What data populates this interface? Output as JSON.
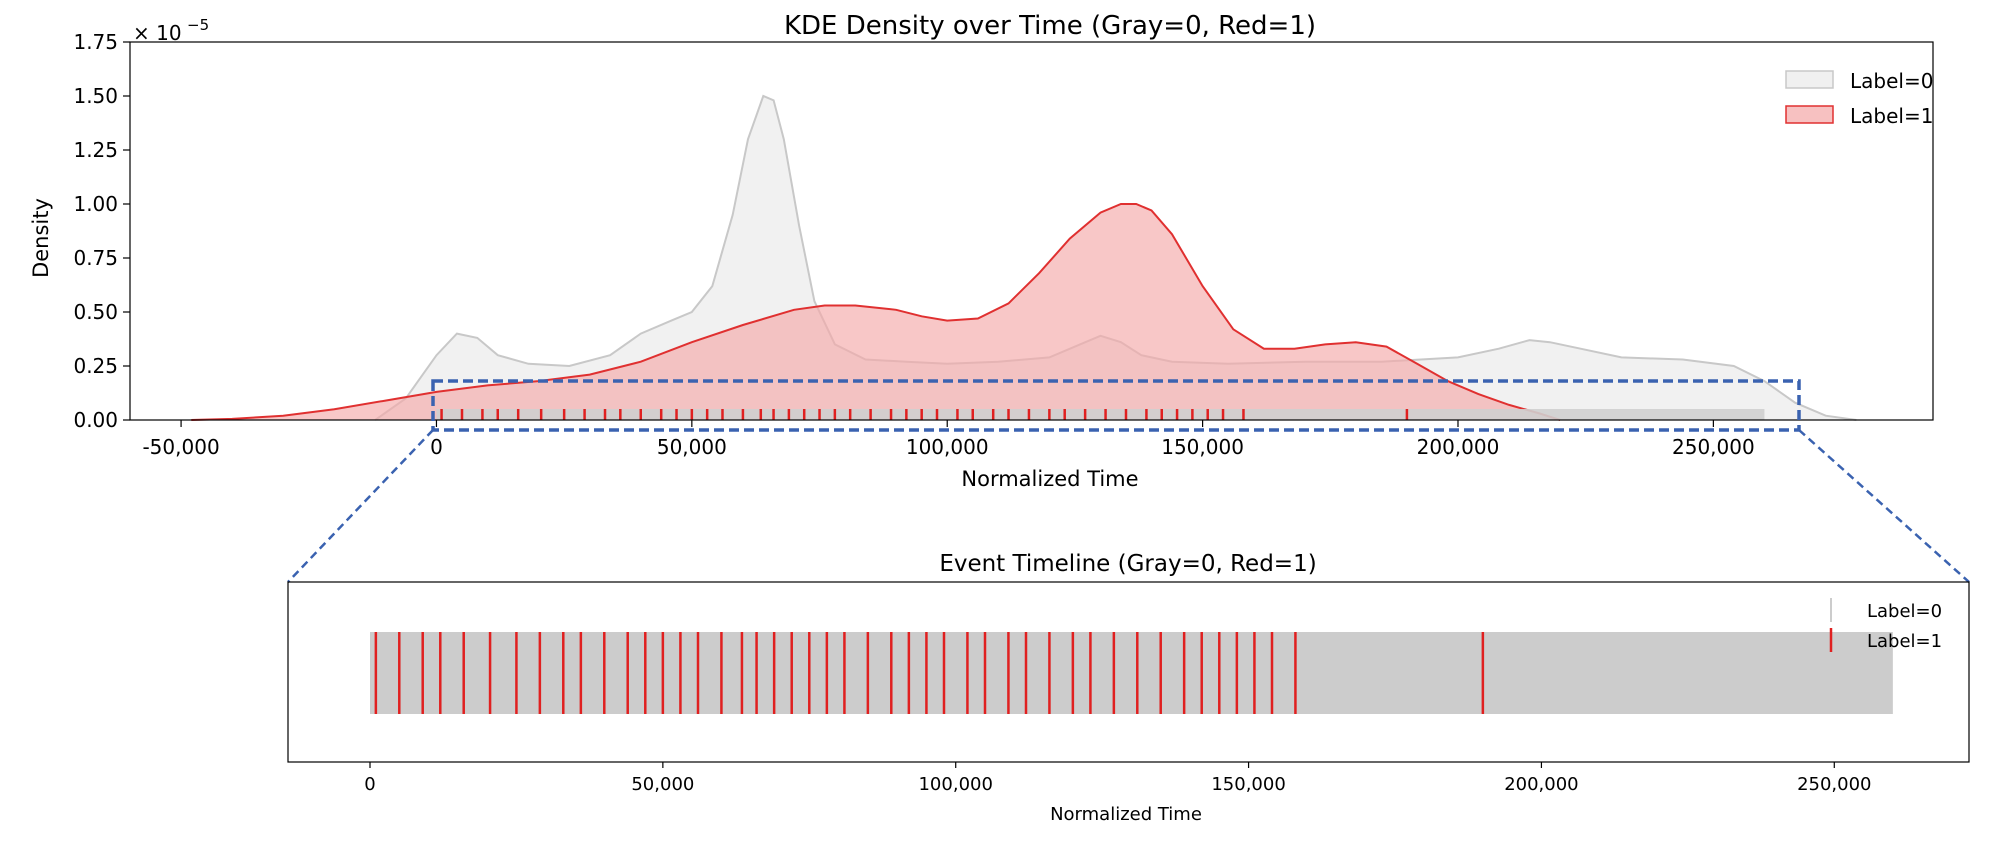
{
  "chart_data": [
    {
      "id": "kde",
      "type": "area",
      "title": "KDE Density over Time (Gray=0, Red=1)",
      "xlabel": "Normalized Time",
      "ylabel": "Density",
      "y_scale_note": "× 10^-5",
      "y_offset_text": "× 10",
      "y_offset_exp": "−5",
      "xlim": [
        -60000,
        293000
      ],
      "ylim": [
        0,
        1.75
      ],
      "xticks": [
        -50000,
        0,
        50000,
        100000,
        150000,
        200000,
        250000
      ],
      "xtick_labels": [
        "-50,000",
        "0",
        "50,000",
        "100,000",
        "150,000",
        "200,000",
        "250,000"
      ],
      "yticks": [
        0,
        0.25,
        0.5,
        0.75,
        1.0,
        1.25,
        1.5,
        1.75
      ],
      "ytick_labels": [
        "0.00",
        "0.25",
        "0.50",
        "0.75",
        "1.00",
        "1.25",
        "1.50",
        "1.75"
      ],
      "legend": [
        {
          "label": "Label=0",
          "fill": "#f0f0f0",
          "stroke": "#c8c8c8"
        },
        {
          "label": "Label=1",
          "fill": "#f7c1c1",
          "stroke": "#e03030"
        }
      ],
      "series": [
        {
          "name": "Label=0",
          "color": "#c8c8c8",
          "fill": "#eeeeee",
          "x": [
            -12000,
            -6000,
            0,
            4000,
            8000,
            12000,
            18000,
            26000,
            34000,
            40000,
            46000,
            50000,
            54000,
            58000,
            61000,
            64000,
            66000,
            68000,
            71000,
            74000,
            78000,
            84000,
            92000,
            100000,
            110000,
            120000,
            126000,
            130000,
            134000,
            138000,
            144000,
            155000,
            170000,
            185000,
            200000,
            208000,
            214000,
            218000,
            224000,
            232000,
            244000,
            254000,
            260000,
            266000,
            272000,
            278000
          ],
          "y": [
            0.0,
            0.1,
            0.3,
            0.4,
            0.38,
            0.3,
            0.26,
            0.25,
            0.3,
            0.4,
            0.46,
            0.5,
            0.62,
            0.95,
            1.3,
            1.5,
            1.48,
            1.3,
            0.9,
            0.55,
            0.35,
            0.28,
            0.27,
            0.26,
            0.27,
            0.29,
            0.35,
            0.39,
            0.36,
            0.3,
            0.27,
            0.26,
            0.27,
            0.27,
            0.29,
            0.33,
            0.37,
            0.36,
            0.33,
            0.29,
            0.28,
            0.25,
            0.18,
            0.08,
            0.02,
            0.0
          ]
        },
        {
          "name": "Label=1",
          "color": "#e03030",
          "fill": "#f4a9a9",
          "x": [
            -48000,
            -40000,
            -30000,
            -20000,
            -10000,
            0,
            10000,
            20000,
            30000,
            40000,
            50000,
            60000,
            70000,
            76000,
            82000,
            90000,
            95000,
            100000,
            106000,
            112000,
            118000,
            124000,
            130000,
            134000,
            137000,
            140000,
            144000,
            150000,
            156000,
            162000,
            168000,
            174000,
            180000,
            186000,
            192000,
            198000,
            204000,
            210000,
            216000,
            220000
          ],
          "y": [
            0.0,
            0.005,
            0.02,
            0.05,
            0.09,
            0.13,
            0.16,
            0.18,
            0.21,
            0.27,
            0.36,
            0.44,
            0.51,
            0.53,
            0.53,
            0.51,
            0.48,
            0.46,
            0.47,
            0.54,
            0.68,
            0.84,
            0.96,
            1.0,
            1.0,
            0.97,
            0.86,
            0.62,
            0.42,
            0.33,
            0.33,
            0.35,
            0.36,
            0.34,
            0.26,
            0.18,
            0.12,
            0.07,
            0.03,
            0.0
          ]
        }
      ],
      "rug_label0_extent": [
        0,
        260000
      ],
      "rug_label1_events": [
        1000,
        5000,
        9000,
        12000,
        16000,
        20500,
        25000,
        29000,
        33000,
        36000,
        40000,
        44000,
        47000,
        50000,
        53000,
        56000,
        60000,
        63500,
        66000,
        69000,
        72000,
        75000,
        78000,
        81000,
        85000,
        89000,
        92000,
        95000,
        98000,
        102000,
        105000,
        109000,
        112000,
        116000,
        120000,
        123000,
        127000,
        131000,
        135000,
        139000,
        142000,
        145000,
        148000,
        151000,
        154000,
        158000,
        190000
      ]
    },
    {
      "id": "timeline",
      "type": "scatter",
      "title": "Event Timeline (Gray=0, Red=1)",
      "xlabel": "Normalized Time",
      "xlim": [
        -14000,
        273000
      ],
      "xticks": [
        0,
        50000,
        100000,
        150000,
        200000,
        250000
      ],
      "xtick_labels": [
        "0",
        "50,000",
        "100,000",
        "150,000",
        "200,000",
        "250,000"
      ],
      "legend": [
        {
          "label": "Label=0",
          "color": "#cccccc"
        },
        {
          "label": "Label=1",
          "color": "#e02020"
        }
      ],
      "label0_extent": [
        0,
        260000
      ],
      "label1_events": [
        1000,
        5000,
        9000,
        12000,
        16000,
        20500,
        25000,
        29000,
        33000,
        36000,
        40000,
        44000,
        47000,
        50000,
        53000,
        56000,
        60000,
        63500,
        66000,
        69000,
        72000,
        75000,
        78000,
        81000,
        85000,
        89000,
        92000,
        95000,
        98000,
        102000,
        105000,
        109000,
        112000,
        116000,
        120000,
        123000,
        127000,
        131000,
        135000,
        139000,
        142000,
        145000,
        148000,
        151000,
        154000,
        158000,
        190000
      ]
    }
  ]
}
